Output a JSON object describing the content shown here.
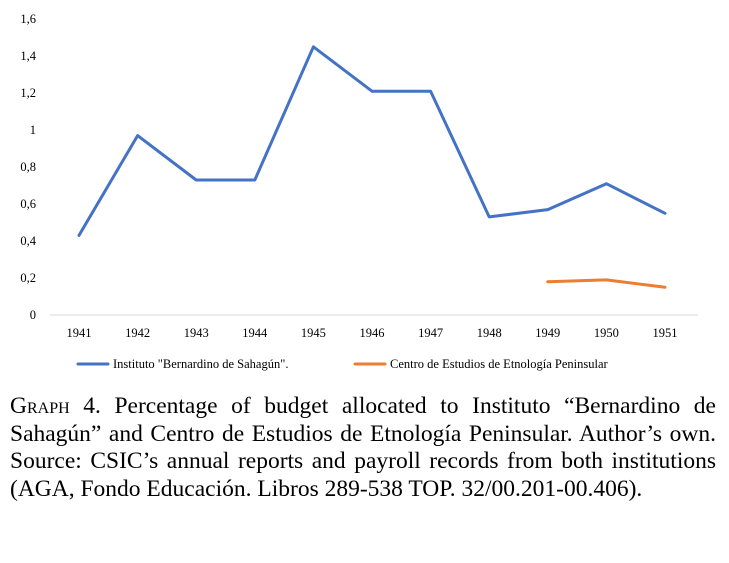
{
  "chart_data": {
    "type": "line",
    "categories": [
      "1941",
      "1942",
      "1943",
      "1944",
      "1945",
      "1946",
      "1947",
      "1948",
      "1949",
      "1950",
      "1951"
    ],
    "y_tick_labels": [
      "0",
      "0,2",
      "0,4",
      "0,6",
      "0,8",
      "1",
      "1,2",
      "1,4",
      "1,6"
    ],
    "ylim": [
      0,
      1.6
    ],
    "grid": false,
    "legend_position": "bottom",
    "series": [
      {
        "name": "Instituto \"Bernardino de Sahagún\".",
        "color": "#4472C4",
        "values": [
          0.43,
          0.97,
          0.73,
          0.73,
          1.45,
          1.21,
          1.21,
          0.53,
          0.57,
          0.71,
          0.55
        ]
      },
      {
        "name": "Centro de Estudios de Etnología Peninsular",
        "color": "#ED7D31",
        "values": [
          null,
          null,
          null,
          null,
          null,
          null,
          null,
          null,
          0.18,
          0.19,
          0.15
        ]
      }
    ]
  },
  "caption": {
    "label": "Graph 4.",
    "text": " Percentage of budget allocated to Instituto “Bernardino de Sahagún” and Centro de Estudios de Etnología Peninsular. Author’s own. Source: CSIC’s annual reports and payroll records from both institutions (AGA, Fondo Educación. Libros 289-538 TOP. 32/00.201-00.406)."
  }
}
